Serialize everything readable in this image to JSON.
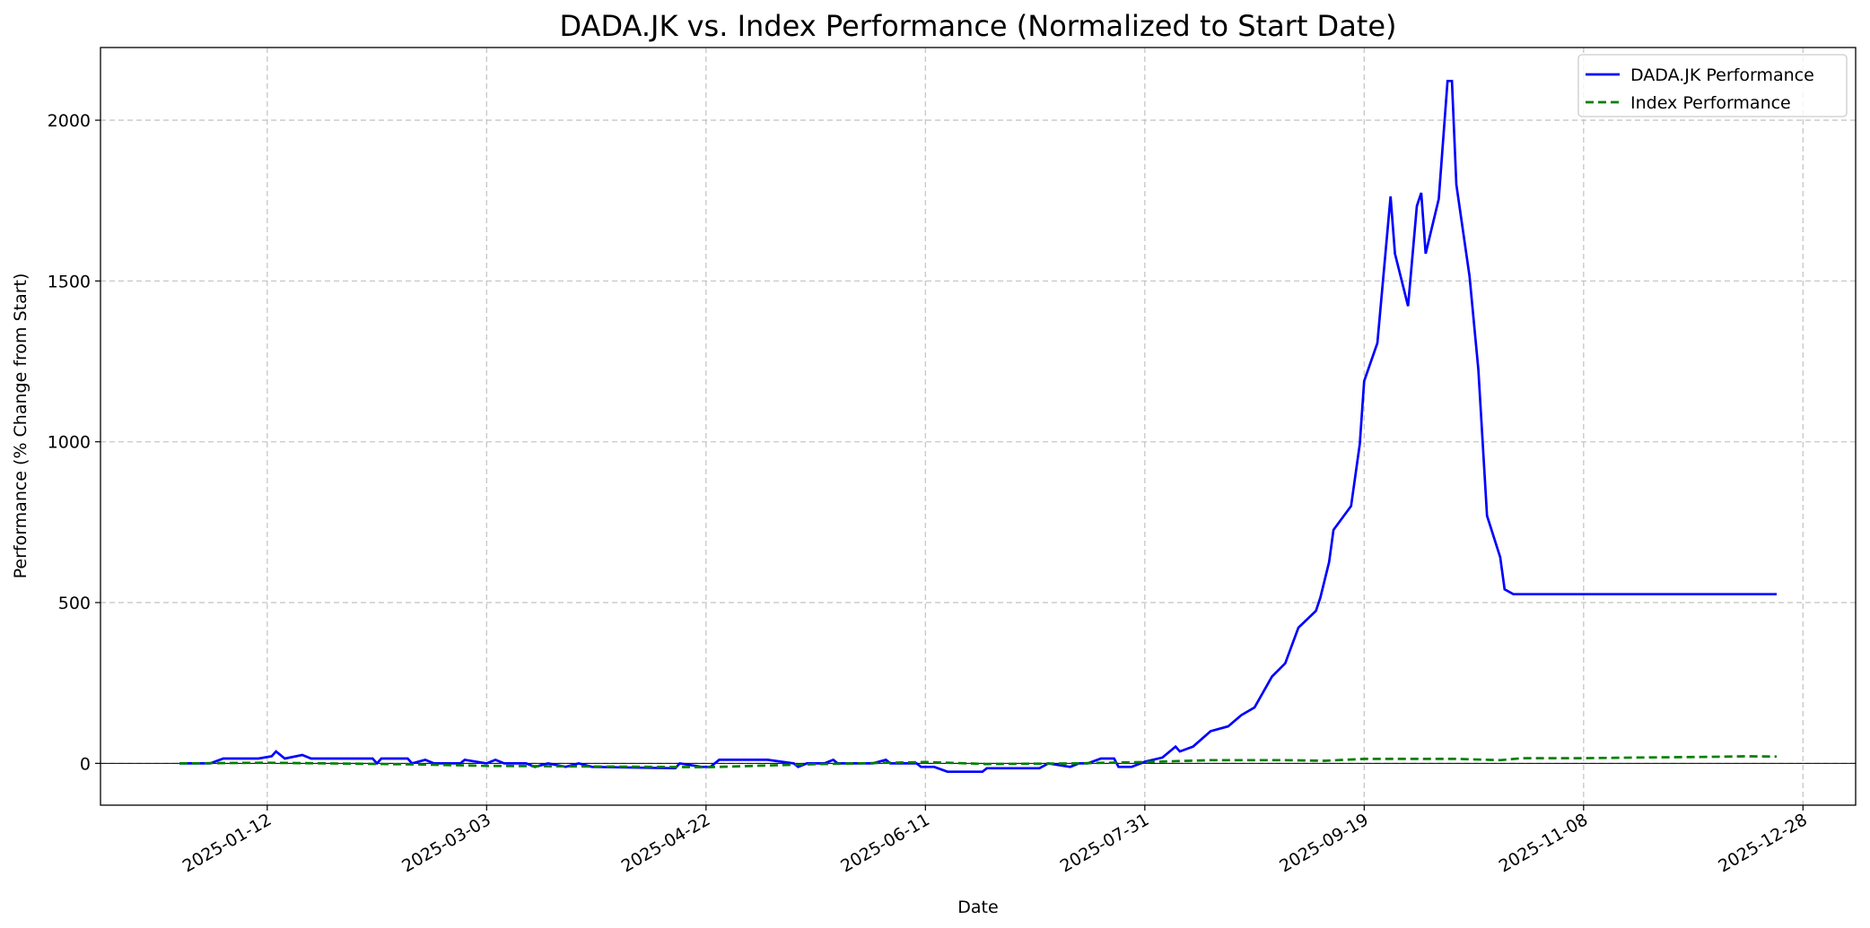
{
  "chart_data": {
    "type": "line",
    "title": "DADA.JK vs. Index Performance (Normalized to Start Date)",
    "xlabel": "Date",
    "ylabel": "Performance (% Change from Start)",
    "xlim": [
      "2024-12-05",
      "2026-01-09"
    ],
    "xticks": [
      "2025-01-12",
      "2025-03-03",
      "2025-04-22",
      "2025-06-11",
      "2025-07-31",
      "2025-09-19",
      "2025-11-08",
      "2025-12-28"
    ],
    "ylim": [
      -130,
      2226
    ],
    "yticks": [
      0,
      500,
      1000,
      1500,
      2000
    ],
    "grid": true,
    "legend": "upper right",
    "reference_line": 0,
    "series": [
      {
        "name": "DADA.JK Performance",
        "color": "#0000ff",
        "linestyle": "solid",
        "x": [
          "2024-12-23",
          "2024-12-30",
          "2025-01-02",
          "2025-01-10",
          "2025-01-13",
          "2025-01-14",
          "2025-01-16",
          "2025-01-20",
          "2025-01-22",
          "2025-02-05",
          "2025-02-06",
          "2025-02-07",
          "2025-02-13",
          "2025-02-14",
          "2025-02-17",
          "2025-02-19",
          "2025-02-25",
          "2025-02-26",
          "2025-03-03",
          "2025-03-05",
          "2025-03-07",
          "2025-03-12",
          "2025-03-14",
          "2025-03-17",
          "2025-03-21",
          "2025-03-24",
          "2025-03-27",
          "2025-04-15",
          "2025-04-16",
          "2025-04-21",
          "2025-04-23",
          "2025-04-25",
          "2025-05-06",
          "2025-05-12",
          "2025-05-13",
          "2025-05-15",
          "2025-05-19",
          "2025-05-21",
          "2025-05-22",
          "2025-05-30",
          "2025-06-02",
          "2025-06-03",
          "2025-06-09",
          "2025-06-10",
          "2025-06-13",
          "2025-06-16",
          "2025-06-24",
          "2025-06-25",
          "2025-07-07",
          "2025-07-09",
          "2025-07-14",
          "2025-07-16",
          "2025-07-18",
          "2025-07-21",
          "2025-07-24",
          "2025-07-25",
          "2025-07-28",
          "2025-07-31",
          "2025-08-04",
          "2025-08-07",
          "2025-08-08",
          "2025-08-11",
          "2025-08-15",
          "2025-08-19",
          "2025-08-22",
          "2025-08-25",
          "2025-08-29",
          "2025-09-01",
          "2025-09-04",
          "2025-09-08",
          "2025-09-09",
          "2025-09-11",
          "2025-09-12",
          "2025-09-16",
          "2025-09-18",
          "2025-09-19",
          "2025-09-22",
          "2025-09-25",
          "2025-09-26",
          "2025-09-29",
          "2025-10-01",
          "2025-10-02",
          "2025-10-03",
          "2025-10-06",
          "2025-10-08",
          "2025-10-09",
          "2025-10-10",
          "2025-10-13",
          "2025-10-15",
          "2025-10-17",
          "2025-10-20",
          "2025-10-21",
          "2025-10-23",
          "2025-11-10",
          "2025-12-01",
          "2025-12-22"
        ],
        "values": [
          0,
          0,
          15,
          15,
          22,
          37,
          15,
          26,
          15,
          15,
          0,
          15,
          15,
          0,
          11,
          0,
          0,
          11,
          0,
          11,
          0,
          0,
          -11,
          0,
          -11,
          0,
          -11,
          -15,
          0,
          -11,
          -11,
          11,
          11,
          0,
          -11,
          0,
          0,
          11,
          0,
          0,
          11,
          0,
          0,
          -11,
          -11,
          -26,
          -26,
          -15,
          -15,
          0,
          -11,
          0,
          0,
          15,
          15,
          -11,
          -11,
          5,
          18,
          52,
          37,
          52,
          100,
          115,
          150,
          174,
          270,
          311,
          422,
          474,
          515,
          626,
          726,
          800,
          993,
          1189,
          1307,
          1763,
          1585,
          1422,
          1733,
          1774,
          1585,
          1755,
          2122,
          2122,
          1800,
          1515,
          1226,
          770,
          641,
          541,
          526,
          526,
          526,
          526
        ]
      },
      {
        "name": "Index Performance",
        "color": "#008000",
        "linestyle": "dashed",
        "x": [
          "2024-12-23",
          "2025-01-12",
          "2025-02-15",
          "2025-03-03",
          "2025-04-01",
          "2025-04-22",
          "2025-05-15",
          "2025-06-11",
          "2025-06-25",
          "2025-07-15",
          "2025-07-31",
          "2025-08-15",
          "2025-09-01",
          "2025-09-10",
          "2025-09-19",
          "2025-10-10",
          "2025-10-20",
          "2025-10-25",
          "2025-11-08",
          "2025-11-20",
          "2025-12-05",
          "2025-12-15",
          "2025-12-22"
        ],
        "values": [
          0,
          2,
          -3,
          -8,
          -10,
          -12,
          -3,
          4,
          -2,
          0,
          4,
          10,
          10,
          8,
          14,
          14,
          10,
          16,
          16,
          18,
          20,
          22,
          21
        ]
      }
    ]
  }
}
